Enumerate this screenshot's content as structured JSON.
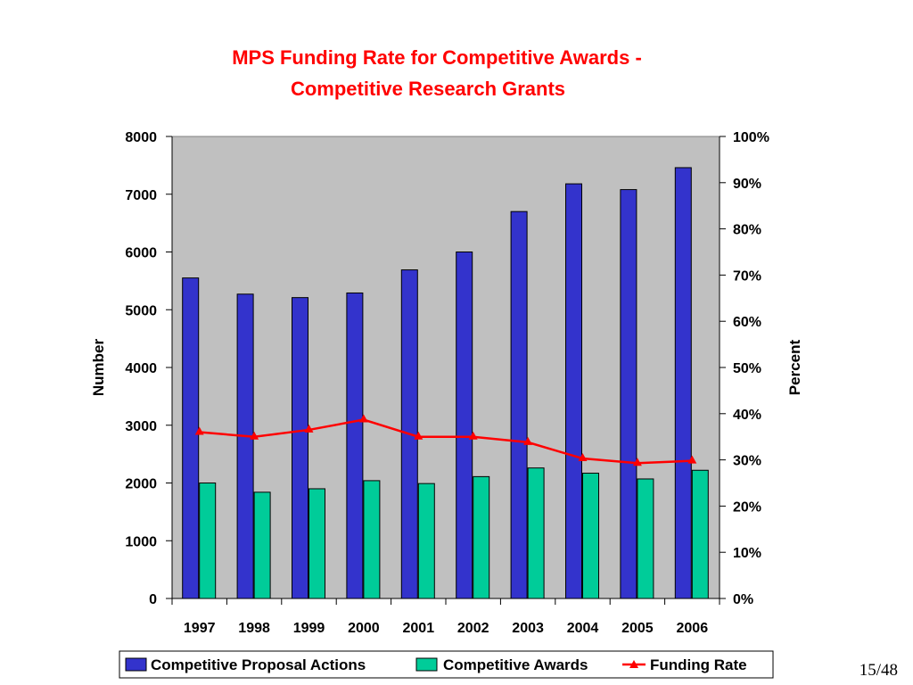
{
  "slide": {
    "page_number": "15/48"
  },
  "colors": {
    "proposals": "#3333cc",
    "awards": "#00cc99",
    "funding_rate": "#ff0000",
    "plot_background": "#c0c0c0",
    "title": "#ff0000"
  },
  "chart_data": {
    "type": "bar",
    "title_lines": [
      "MPS Funding Rate for Competitive Awards -",
      "Competitive Research Grants"
    ],
    "categories": [
      "1997",
      "1998",
      "1999",
      "2000",
      "2001",
      "2002",
      "2003",
      "2004",
      "2005",
      "2006"
    ],
    "series": [
      {
        "name": "Competitive Proposal Actions",
        "type": "bar",
        "axis": "left",
        "values": [
          5550,
          5270,
          5210,
          5290,
          5690,
          6000,
          6700,
          7180,
          7080,
          7460
        ]
      },
      {
        "name": "Competitive Awards",
        "type": "bar",
        "axis": "left",
        "values": [
          2000,
          1840,
          1900,
          2040,
          1990,
          2110,
          2260,
          2170,
          2070,
          2220
        ]
      },
      {
        "name": "Funding Rate",
        "type": "line",
        "axis": "right",
        "marker": "triangle",
        "values": [
          36,
          35,
          36.5,
          38.7,
          35,
          35,
          33.8,
          30.3,
          29.3,
          29.8
        ]
      }
    ],
    "ylabel": "Number",
    "ylim": [
      0,
      8000
    ],
    "yticks": [
      "0",
      "1000",
      "2000",
      "3000",
      "4000",
      "5000",
      "6000",
      "7000",
      "8000"
    ],
    "y2label": "Percent",
    "y2lim": [
      0,
      100
    ],
    "y2ticks": [
      "0%",
      "10%",
      "20%",
      "30%",
      "40%",
      "50%",
      "60%",
      "70%",
      "80%",
      "90%",
      "100%"
    ],
    "grid": false,
    "legend": "bottom"
  }
}
